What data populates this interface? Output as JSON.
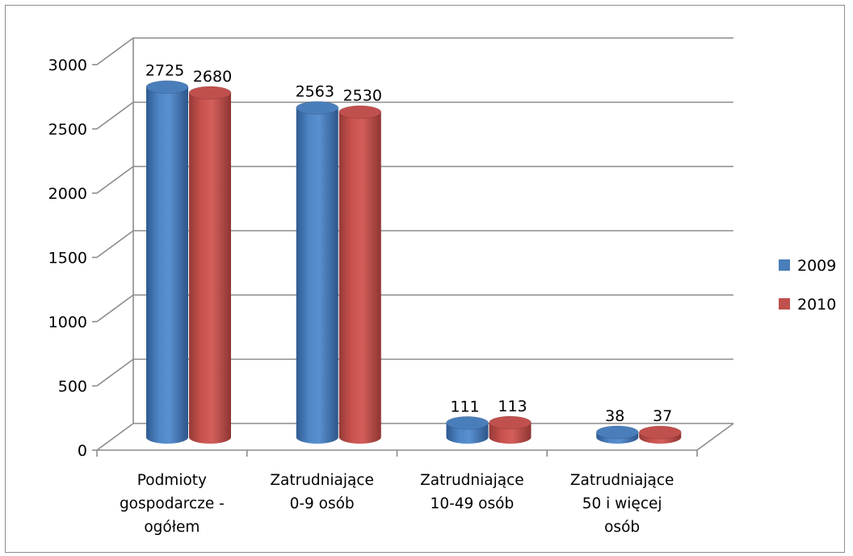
{
  "chart_data": {
    "type": "bar",
    "style": "3d-cylinder",
    "categories": [
      [
        "Podmioty",
        "gospodarcze -",
        "ogółem"
      ],
      [
        "Zatrudniające",
        "0-9 osób"
      ],
      [
        "Zatrudniające",
        "10-49 osób"
      ],
      [
        "Zatrudniające",
        "50 i więcej",
        "osób"
      ]
    ],
    "series": [
      {
        "name": "2009",
        "values": [
          2725,
          2563,
          111,
          38
        ],
        "color": "#4a7ebb"
      },
      {
        "name": "2010",
        "values": [
          2680,
          2530,
          113,
          37
        ],
        "color": "#c0504d"
      }
    ],
    "ylim": [
      0,
      3000
    ],
    "yticks": [
      0,
      500,
      1000,
      1500,
      2000,
      2500,
      3000
    ],
    "grid": true,
    "legend": "right",
    "data_labels": true
  }
}
